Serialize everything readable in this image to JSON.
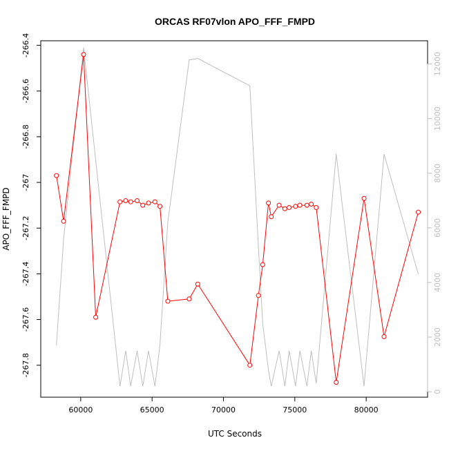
{
  "chart_data": {
    "type": "line",
    "title": "ORCAS RF07vlon APO_FFF_FMPD",
    "xlabel": "UTC Seconds",
    "ylabel": "APO_FFF_FMPD",
    "xlim": [
      57200,
      84300
    ],
    "ylim": [
      -267.94,
      -266.38
    ],
    "y2lim": [
      -200,
      12850
    ],
    "x_ticks": [
      60000,
      65000,
      70000,
      75000,
      80000
    ],
    "y_ticks": [
      -267.8,
      -267.6,
      -267.4,
      -267.2,
      -267.0,
      -266.8,
      -266.6,
      -266.4
    ],
    "y2_ticks": [
      0,
      2000,
      4000,
      6000,
      8000,
      10000,
      12000
    ],
    "grid": false,
    "colors": {
      "primary": "#ff0000",
      "secondary": "#bebebe",
      "axis": "#000000"
    },
    "series": [
      {
        "axis": "left",
        "color": "#ff0000",
        "marker": "open-circle",
        "x": [
          58300,
          58800,
          60200,
          61050,
          62750,
          63150,
          63500,
          63950,
          64350,
          64750,
          65200,
          65550,
          66100,
          67600,
          68200,
          71850,
          72450,
          72750,
          73150,
          73350,
          73900,
          74300,
          74600,
          75050,
          75350,
          75850,
          76150,
          76500,
          77900,
          79850,
          81250,
          83650
        ],
        "y": [
          -266.97,
          -267.17,
          -266.44,
          -267.59,
          -267.085,
          -267.08,
          -267.085,
          -267.08,
          -267.1,
          -267.09,
          -267.085,
          -267.105,
          -267.52,
          -267.51,
          -267.445,
          -267.8,
          -267.495,
          -267.36,
          -267.09,
          -267.15,
          -267.1,
          -267.115,
          -267.11,
          -267.105,
          -267.1,
          -267.1,
          -267.095,
          -267.11,
          -267.875,
          -267.07,
          -267.675,
          -267.13
        ]
      },
      {
        "axis": "right",
        "color": "#bebebe",
        "marker": "none",
        "x": [
          58300,
          58800,
          60200,
          62750,
          63150,
          63500,
          63950,
          64350,
          64750,
          65200,
          65550,
          66100,
          67600,
          68200,
          71850,
          72450,
          72750,
          73150,
          73350,
          73900,
          74300,
          74600,
          75050,
          75350,
          75850,
          76150,
          76500,
          77900,
          79850,
          81250,
          83650
        ],
        "y": [
          1700,
          5600,
          12600,
          200,
          1500,
          200,
          1500,
          200,
          1500,
          200,
          1700,
          6200,
          12150,
          12200,
          11200,
          5300,
          2500,
          800,
          200,
          1500,
          200,
          1500,
          200,
          1500,
          200,
          1500,
          300,
          8700,
          200,
          8700,
          4300
        ]
      }
    ]
  }
}
